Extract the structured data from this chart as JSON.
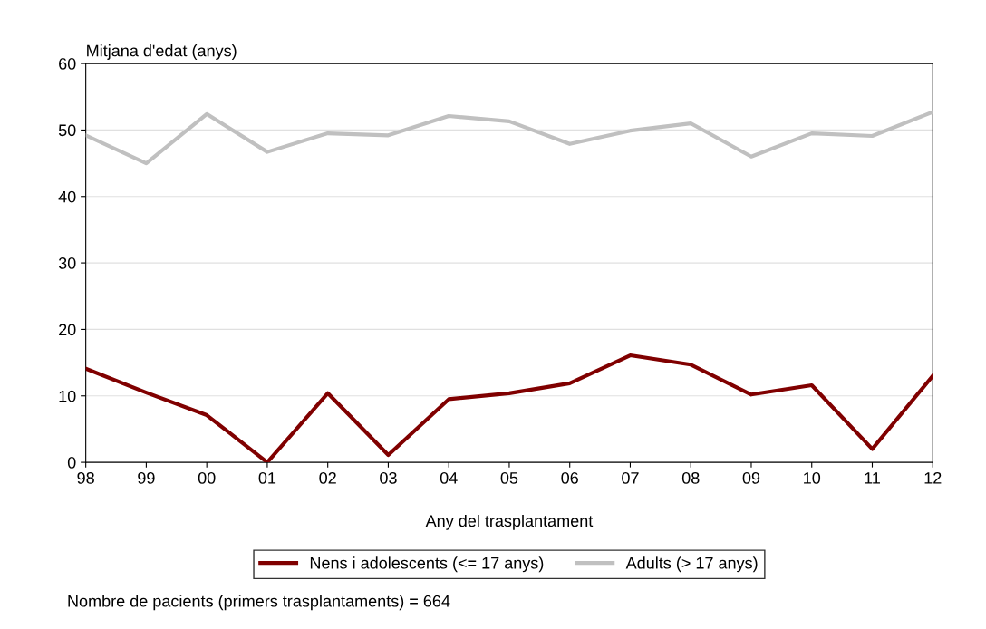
{
  "chart_data": {
    "type": "line",
    "ylabel": "Mitjana d'edat (anys)",
    "xlabel": "Any del trasplantament",
    "categories": [
      "98",
      "99",
      "00",
      "01",
      "02",
      "03",
      "04",
      "05",
      "06",
      "07",
      "08",
      "09",
      "10",
      "11",
      "12"
    ],
    "series": [
      {
        "name": "Nens i adolescents (<= 17 anys)",
        "color": "#800000",
        "values": [
          14.1,
          10.5,
          7.1,
          0,
          10.4,
          1.1,
          9.5,
          10.4,
          11.9,
          16.1,
          14.7,
          10.2,
          11.6,
          2.0,
          13.0
        ]
      },
      {
        "name": "Adults (> 17 anys)",
        "color": "#c0c0c0",
        "values": [
          49.2,
          45.0,
          52.4,
          46.7,
          49.5,
          49.2,
          52.1,
          51.3,
          47.9,
          49.9,
          51.0,
          46.0,
          49.5,
          49.1,
          52.7
        ]
      }
    ],
    "ylim": [
      0,
      60
    ],
    "yticks": [
      0,
      10,
      20,
      30,
      40,
      50,
      60
    ],
    "grid": "y",
    "legend": "bottom",
    "marker": "none",
    "line_style": "solid",
    "annotations": [
      "Nombre de pacients (primers trasplantaments) = 664"
    ]
  }
}
